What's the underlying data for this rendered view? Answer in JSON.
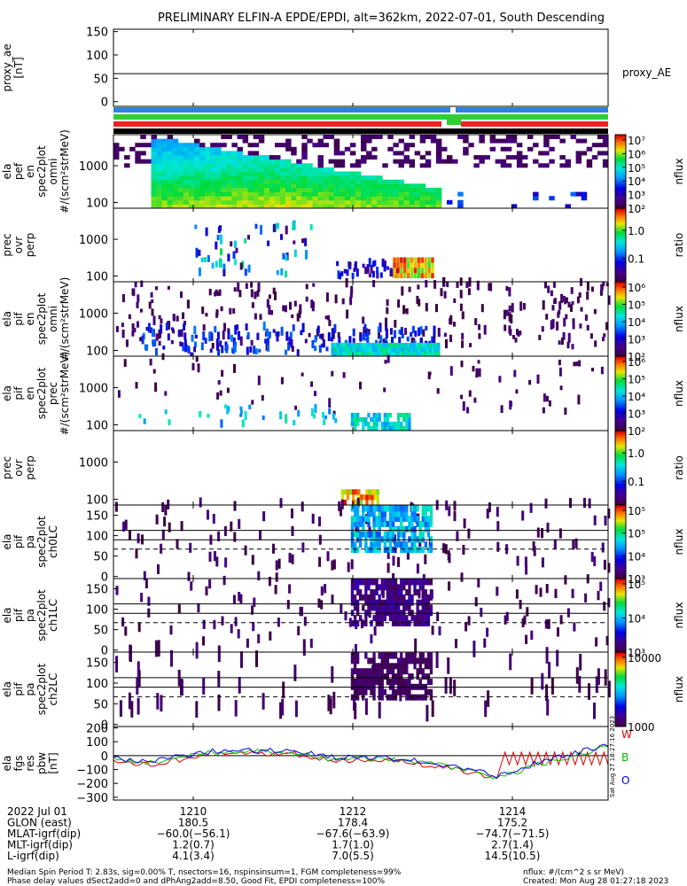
{
  "title": "PRELIMINARY ELFIN-A EPDE/EPDI, alt=362km, 2022-07-01, South Descending",
  "chart_data": [
    {
      "type": "line",
      "panel_id": "proxy_ae",
      "ylabel": [
        "proxy_ae",
        "[nT]"
      ],
      "y_ticks": [
        "150",
        "100",
        "50",
        "0"
      ],
      "ylim": [
        -10,
        155
      ],
      "series": [
        {
          "name": "proxy_AE",
          "x": [
            1209.0,
            1215.2
          ],
          "values": [
            60,
            60
          ]
        }
      ]
    },
    {
      "type": "heatmap",
      "panel_id": "pef_omni",
      "ylabel": [
        "ela",
        "pef",
        "en",
        "spec2plot",
        "omni",
        "#/(scm²strMeV)"
      ],
      "y_ticks": [
        "1000",
        "100"
      ],
      "colorbar": {
        "title": "nflux",
        "ticks": [
          "10⁷",
          "10⁶",
          "10⁵",
          "10⁴",
          "10³",
          "10²"
        ]
      }
    },
    {
      "type": "heatmap",
      "panel_id": "pef_ratio",
      "ylabel": [
        "prec",
        "ovr",
        "perp"
      ],
      "y_ticks": [
        "1000",
        "100"
      ],
      "colorbar": {
        "title": "ratio",
        "ticks": [
          "1.0",
          "0.1"
        ]
      }
    },
    {
      "type": "heatmap",
      "panel_id": "pif_omni",
      "ylabel": [
        "ela",
        "pif",
        "en",
        "spec2plot",
        "omni",
        "#/(scm²strMeV)"
      ],
      "y_ticks": [
        "1000",
        "100"
      ],
      "colorbar": {
        "title": "nflux",
        "ticks": [
          "10⁶",
          "10⁵",
          "10⁴",
          "10³",
          "10²"
        ]
      }
    },
    {
      "type": "heatmap",
      "panel_id": "pif_prec",
      "ylabel": [
        "ela",
        "pif",
        "en",
        "spec2plot",
        "prec",
        "#/(scm²strMeV)"
      ],
      "y_ticks": [
        "1000",
        "100"
      ],
      "colorbar": {
        "title": "nflux",
        "ticks": [
          "10⁶",
          "10⁵",
          "10⁴",
          "10³",
          "10²"
        ]
      }
    },
    {
      "type": "heatmap",
      "panel_id": "pif_ratio",
      "ylabel": [
        "prec",
        "ovr",
        "perp"
      ],
      "y_ticks": [
        "1000",
        "100"
      ],
      "colorbar": {
        "title": "ratio",
        "ticks": [
          "1.0",
          "0.1"
        ]
      }
    },
    {
      "type": "heatmap",
      "panel_id": "pa_ch0",
      "ylabel": [
        "ela",
        "pif",
        "pa",
        "spec2plot",
        "ch0LC"
      ],
      "y_ticks": [
        "150",
        "100",
        "50",
        "0"
      ],
      "ref_lines": [
        113,
        90,
        67
      ],
      "colorbar": {
        "title": "nflux",
        "ticks": [
          "10⁵",
          "10⁵",
          "10⁴",
          "10³"
        ]
      }
    },
    {
      "type": "heatmap",
      "panel_id": "pa_ch1",
      "ylabel": [
        "ela",
        "pif",
        "pa",
        "spec2plot",
        "ch1LC"
      ],
      "y_ticks": [
        "150",
        "100",
        "50",
        "0"
      ],
      "ref_lines": [
        113,
        90,
        67
      ],
      "colorbar": {
        "title": "nflux",
        "ticks": [
          "10⁵",
          "10⁴",
          "10³"
        ]
      }
    },
    {
      "type": "heatmap",
      "panel_id": "pa_ch2",
      "ylabel": [
        "ela",
        "pif",
        "pa",
        "spec2plot",
        "ch2LC"
      ],
      "y_ticks": [
        "150",
        "100",
        "50",
        "0"
      ],
      "ref_lines": [
        113,
        90,
        67
      ],
      "colorbar": {
        "title": "nflux",
        "ticks": [
          "10000",
          "1000"
        ]
      }
    },
    {
      "type": "line",
      "panel_id": "fgs",
      "ylabel": [
        "ela",
        "fgs",
        "res",
        "pbw",
        "[nT]"
      ],
      "y_ticks": [
        "200",
        "100",
        "0",
        "−100",
        "−200",
        "−300"
      ],
      "ylim": [
        -320,
        210
      ],
      "legend": [
        "W",
        "B",
        "O"
      ],
      "colors": {
        "W": "#dd0000",
        "B": "#00bb00",
        "O": "#0000dd"
      },
      "side_stamp": "Sat Aug 27 18:27:16 2023",
      "x_range": [
        1209.0,
        1215.2
      ]
    }
  ],
  "x_ticks": [
    "1210",
    "1212",
    "1214"
  ],
  "footer_table": [
    {
      "label": "2022 Jul 01",
      "values": [
        "1210",
        "1212",
        "1214"
      ]
    },
    {
      "label": "GLON (east)",
      "values": [
        "180.5",
        "178.4",
        "175.2"
      ]
    },
    {
      "label": "MLAT-igrf(dip)",
      "values": [
        "−60.0(−56.1)",
        "−67.6(−63.9)",
        "−74.7(−71.5)"
      ]
    },
    {
      "label": "MLT-igrf(dip)",
      "values": [
        "1.2(0.7)",
        "1.7(1.0)",
        "2.7(1.4)"
      ]
    },
    {
      "label": "L-igrf(dip)",
      "values": [
        "4.1(3.4)",
        "7.0(5.5)",
        "14.5(10.5)"
      ]
    }
  ],
  "notes": {
    "line1": "Median Spin Period T: 2.83s, sig=0.00% T, nsectors=16, nspinsinsum=1, FGM completeness=99%",
    "line2": "Phase delay values dSect2add=0 and dPhAng2add=8.50, Good Fit, EPDI completeness=100%",
    "right1": "nflux: #/(cm^2 s sr MeV)",
    "right2": "Created: Mon Aug 28 01:27:18 2023"
  },
  "colors": {
    "bar_blue": "#2f80e0",
    "bar_green": "#33cc33",
    "bar_red": "#ee2222",
    "bar_black": "#000000"
  }
}
